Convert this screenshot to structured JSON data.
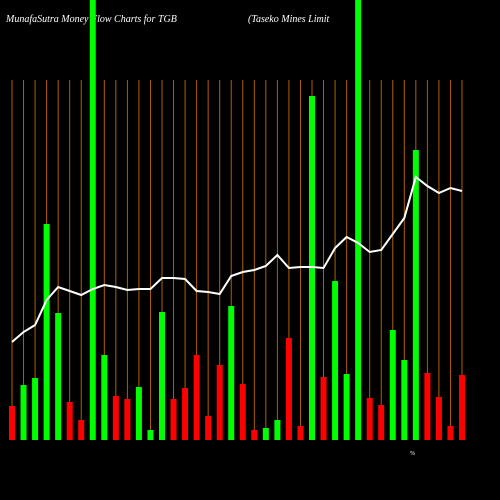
{
  "chart_data": {
    "type": "bar",
    "title": "MunafaSutra  Money Flow  Charts for TGB",
    "subtitle": "(Taseko  Mines Limit",
    "note": "%",
    "categories": [
      null,
      null,
      null,
      null,
      null,
      null,
      null,
      null,
      null,
      null,
      null,
      null,
      null,
      null,
      null,
      null,
      null,
      null,
      null,
      null,
      null,
      null,
      null,
      null,
      null,
      null,
      null,
      null,
      null,
      null,
      null,
      null,
      null,
      null,
      null,
      null,
      null,
      null,
      null,
      null
    ],
    "values": [
      34,
      55,
      62,
      216,
      127,
      38,
      20,
      440,
      85,
      44,
      41,
      53,
      10,
      128,
      41,
      52,
      85,
      24,
      75,
      134,
      56,
      10,
      12,
      20,
      102,
      14,
      344,
      63,
      159,
      66,
      440,
      42,
      35,
      110,
      80,
      290,
      67,
      43,
      14,
      65
    ],
    "colors": [
      "#ff0000",
      "#00ff00",
      "#00ff00",
      "#00ff00",
      "#00ff00",
      "#ff0000",
      "#ff0000",
      "#00ff00",
      "#00ff00",
      "#ff0000",
      "#ff0000",
      "#00ff00",
      "#00ff00",
      "#00ff00",
      "#ff0000",
      "#ff0000",
      "#ff0000",
      "#ff0000",
      "#ff0000",
      "#00ff00",
      "#ff0000",
      "#ff0000",
      "#00ff00",
      "#00ff00",
      "#ff0000",
      "#ff0000",
      "#00ff00",
      "#ff0000",
      "#00ff00",
      "#00ff00",
      "#00ff00",
      "#ff0000",
      "#ff0000",
      "#00ff00",
      "#00ff00",
      "#00ff00",
      "#ff0000",
      "#ff0000",
      "#ff0000",
      "#ff0000"
    ],
    "line_values": [
      98,
      108,
      115,
      140,
      153,
      149,
      145,
      151,
      155,
      153,
      150,
      151,
      151,
      162,
      162,
      161,
      149,
      148,
      146,
      164,
      168,
      170,
      174,
      185,
      172,
      173,
      173,
      172,
      192,
      203,
      197,
      188,
      190,
      206,
      222,
      263,
      254,
      247,
      252,
      249
    ],
    "line_color": "#ffffff",
    "grid_color": "#b06000",
    "ylim": [
      0,
      440
    ]
  }
}
